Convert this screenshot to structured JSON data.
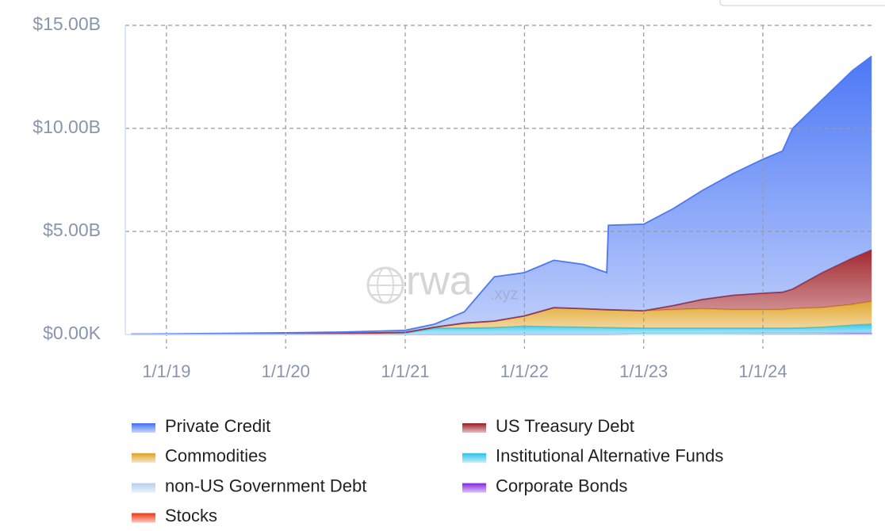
{
  "chart_data": {
    "type": "stacked-area",
    "watermark": {
      "main": "rwa",
      "suffix": ".xyz"
    },
    "x": [
      "9/15/18",
      "1/1/19",
      "7/1/19",
      "1/1/20",
      "7/1/20",
      "1/1/21",
      "4/1/21",
      "7/1/21",
      "10/1/21",
      "1/1/22",
      "4/1/22",
      "7/1/22",
      "9/10/22",
      "9/15/22",
      "1/1/23",
      "4/1/23",
      "7/1/23",
      "10/1/23",
      "1/1/24",
      "3/1/24",
      "4/1/24",
      "7/1/24",
      "10/1/24",
      "11/29/24"
    ],
    "xlim": [
      "8/28/18",
      "12/1/24"
    ],
    "xticks": [
      "1/1/19",
      "1/1/20",
      "1/1/21",
      "1/1/22",
      "1/1/23",
      "1/1/24"
    ],
    "ylim": [
      0,
      15000000000
    ],
    "yticks": [
      {
        "value": 0,
        "label": "$0.00K"
      },
      {
        "value": 5000000000,
        "label": "$5.00B"
      },
      {
        "value": 10000000000,
        "label": "$10.00B"
      },
      {
        "value": 15000000000,
        "label": "$15.00B"
      }
    ],
    "grid": true,
    "series": [
      {
        "name": "Private Credit",
        "color": "#4c78f5",
        "values": [
          10000000,
          20000000,
          30000000,
          50000000,
          70000000,
          100000000,
          150000000,
          550000000,
          2150000000,
          2100000000,
          2300000000,
          2150000000,
          1800000000,
          4100000000,
          4200000000,
          4700000000,
          5300000000,
          5900000000,
          6500000000,
          6850000000,
          7800000000,
          8400000000,
          9100000000,
          9400000000
        ]
      },
      {
        "name": "US Treasury Debt",
        "color": "#a32a30",
        "values": [
          0,
          0,
          0,
          0,
          0,
          0,
          0,
          0,
          0,
          0,
          0,
          0,
          0,
          0,
          0,
          200000000,
          450000000,
          700000000,
          800000000,
          850000000,
          950000000,
          1700000000,
          2250000000,
          2500000000
        ]
      },
      {
        "name": "Commodities",
        "color": "#e2a932",
        "values": [
          0,
          0,
          0,
          0,
          10000000,
          30000000,
          50000000,
          250000000,
          320000000,
          500000000,
          930000000,
          900000000,
          870000000,
          870000000,
          850000000,
          900000000,
          950000000,
          900000000,
          900000000,
          900000000,
          950000000,
          950000000,
          1000000000,
          1100000000
        ]
      },
      {
        "name": "Institutional Alternative Funds",
        "color": "#38c6ea",
        "values": [
          10000000,
          10000000,
          20000000,
          30000000,
          40000000,
          60000000,
          280000000,
          280000000,
          300000000,
          370000000,
          340000000,
          320000000,
          300000000,
          300000000,
          250000000,
          250000000,
          250000000,
          240000000,
          230000000,
          230000000,
          230000000,
          270000000,
          360000000,
          400000000
        ]
      },
      {
        "name": "non-US Government Debt",
        "color": "#b8d3ee",
        "values": [
          0,
          0,
          0,
          0,
          0,
          10000000,
          20000000,
          20000000,
          30000000,
          30000000,
          30000000,
          30000000,
          30000000,
          30000000,
          30000000,
          30000000,
          30000000,
          30000000,
          30000000,
          30000000,
          30000000,
          30000000,
          30000000,
          40000000
        ]
      },
      {
        "name": "Corporate Bonds",
        "color": "#8b35e0",
        "values": [
          0,
          0,
          0,
          0,
          0,
          0,
          0,
          0,
          0,
          0,
          0,
          0,
          0,
          0,
          0,
          0,
          0,
          0,
          10000000,
          10000000,
          10000000,
          10000000,
          10000000,
          10000000
        ]
      },
      {
        "name": "Stocks",
        "color": "#f0431f",
        "values": [
          0,
          0,
          0,
          0,
          0,
          0,
          0,
          0,
          0,
          0,
          0,
          0,
          0,
          0,
          20000000,
          20000000,
          20000000,
          30000000,
          30000000,
          30000000,
          30000000,
          40000000,
          50000000,
          50000000
        ]
      }
    ]
  }
}
